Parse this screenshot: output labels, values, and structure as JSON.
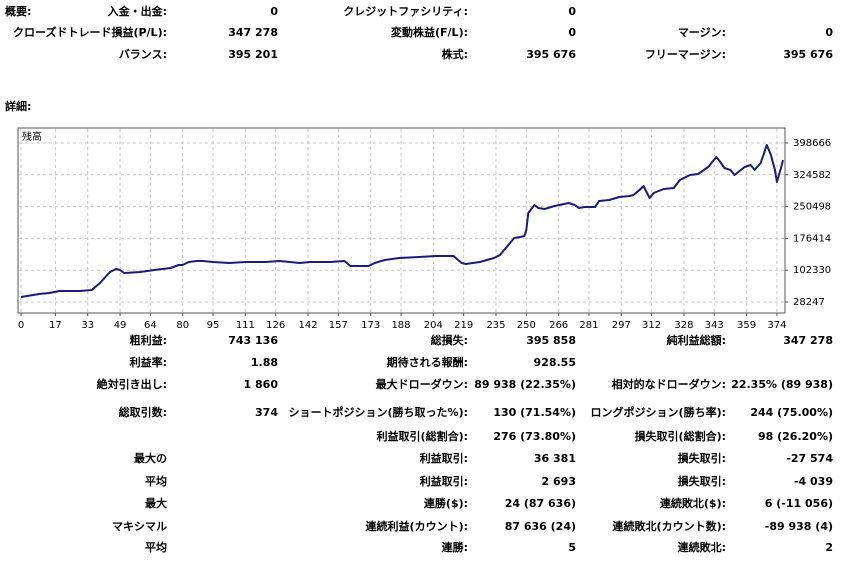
{
  "summary": {
    "title": "概要:",
    "rows": [
      [
        "入金・出金:",
        "0",
        "クレジットファシリティ:",
        "0",
        null,
        null
      ],
      [
        "クローズドトレード損益(P/L):",
        "347 278",
        "変動株益(F/L):",
        "0",
        "マージン:",
        "0"
      ],
      [
        "バランス:",
        "395 201",
        "株式:",
        "395 676",
        "フリーマージン:",
        "395 676"
      ]
    ]
  },
  "detail_title": "詳細:",
  "chart_data": {
    "type": "line",
    "x": [
      0,
      9,
      14,
      19,
      29,
      35,
      39,
      44,
      47,
      49,
      51,
      59,
      66,
      74,
      78,
      80,
      83,
      87,
      90,
      95,
      103,
      111,
      121,
      128,
      133,
      138,
      143,
      153,
      160,
      163,
      172,
      175,
      180,
      187,
      197,
      205,
      214,
      218,
      220,
      227,
      234,
      237,
      239,
      242,
      244,
      247,
      249,
      250,
      251,
      254,
      256,
      259,
      264,
      271,
      274,
      276,
      279,
      284,
      286,
      291,
      296,
      301,
      303,
      306,
      308,
      311,
      313,
      318,
      323,
      326,
      331,
      335,
      340,
      344,
      346,
      348,
      351,
      353,
      358,
      361,
      363,
      366,
      369,
      371,
      373,
      374,
      376,
      377
    ],
    "series": [
      {
        "name": "残高",
        "color": "#1c1c78",
        "values": [
          39900,
          46900,
          49200,
          53900,
          53900,
          56200,
          72500,
          98100,
          105100,
          102800,
          95800,
          98100,
          102800,
          107500,
          114400,
          114400,
          121400,
          123800,
          123800,
          121400,
          119100,
          121400,
          121400,
          123800,
          121400,
          119100,
          121400,
          121400,
          123800,
          112100,
          112100,
          119100,
          126100,
          130800,
          133100,
          135400,
          135400,
          119100,
          116800,
          121400,
          130800,
          137700,
          149400,
          165700,
          177300,
          179700,
          182000,
          196000,
          235600,
          254200,
          247200,
          244900,
          251900,
          258900,
          254200,
          247200,
          249600,
          249600,
          263500,
          265900,
          272900,
          275200,
          277500,
          289200,
          298500,
          270500,
          282200,
          291500,
          293800,
          312500,
          324100,
          326400,
          342800,
          366100,
          354400,
          340400,
          336100,
          324100,
          342800,
          347400,
          336100,
          352100,
          394000,
          370700,
          336100,
          307800,
          340400,
          359100
        ]
      }
    ],
    "xlim": [
      -1.5,
      378
    ],
    "ylim": [
      2600,
      433600
    ],
    "xticks": [
      0,
      17,
      33,
      49,
      64,
      80,
      95,
      111,
      126,
      142,
      157,
      173,
      188,
      204,
      219,
      235,
      250,
      266,
      281,
      297,
      312,
      328,
      343,
      359,
      374
    ],
    "yticks": [
      28247,
      102330,
      176414,
      250498,
      324582,
      398666
    ],
    "grid": true
  },
  "stats": {
    "rows": [
      [
        "粗利益:",
        "743 136",
        "総損失:",
        "395 858",
        "純利益総額:",
        "347 278"
      ],
      [
        "利益率:",
        "1.88",
        "期待される報酬:",
        "928.55",
        null,
        null
      ],
      [
        "絶対引き出し:",
        "1 860",
        "最大ドローダウン:",
        "89 938 (22.35%)",
        "相対的なドローダウン:",
        "22.35% (89 938)"
      ],
      [
        "総取引数:",
        "374",
        "ショートポジション(勝ち取った%):",
        "130 (71.54%)",
        "ロングポジション(勝ち率):",
        "244 (75.00%)"
      ],
      [
        null,
        null,
        "利益取引(総割合):",
        "276 (73.80%)",
        "損失取引(総割合):",
        "98 (26.20%)"
      ],
      [
        "最大の",
        null,
        "利益取引:",
        "36 381",
        "損失取引:",
        "-27 574"
      ],
      [
        "平均",
        null,
        "利益取引:",
        "2 693",
        "損失取引:",
        "-4 039"
      ],
      [
        "最大",
        null,
        "連勝($):",
        "24 (87 636)",
        "連続敗北($):",
        "6 (-11 056)"
      ],
      [
        "マキシマル",
        null,
        "連続利益(カウント):",
        "87 636 (24)",
        "連続敗北(カウント数):",
        "-89 938 (4)"
      ],
      [
        "平均",
        null,
        "連勝:",
        "5",
        "連続敗北:",
        "2"
      ]
    ]
  }
}
